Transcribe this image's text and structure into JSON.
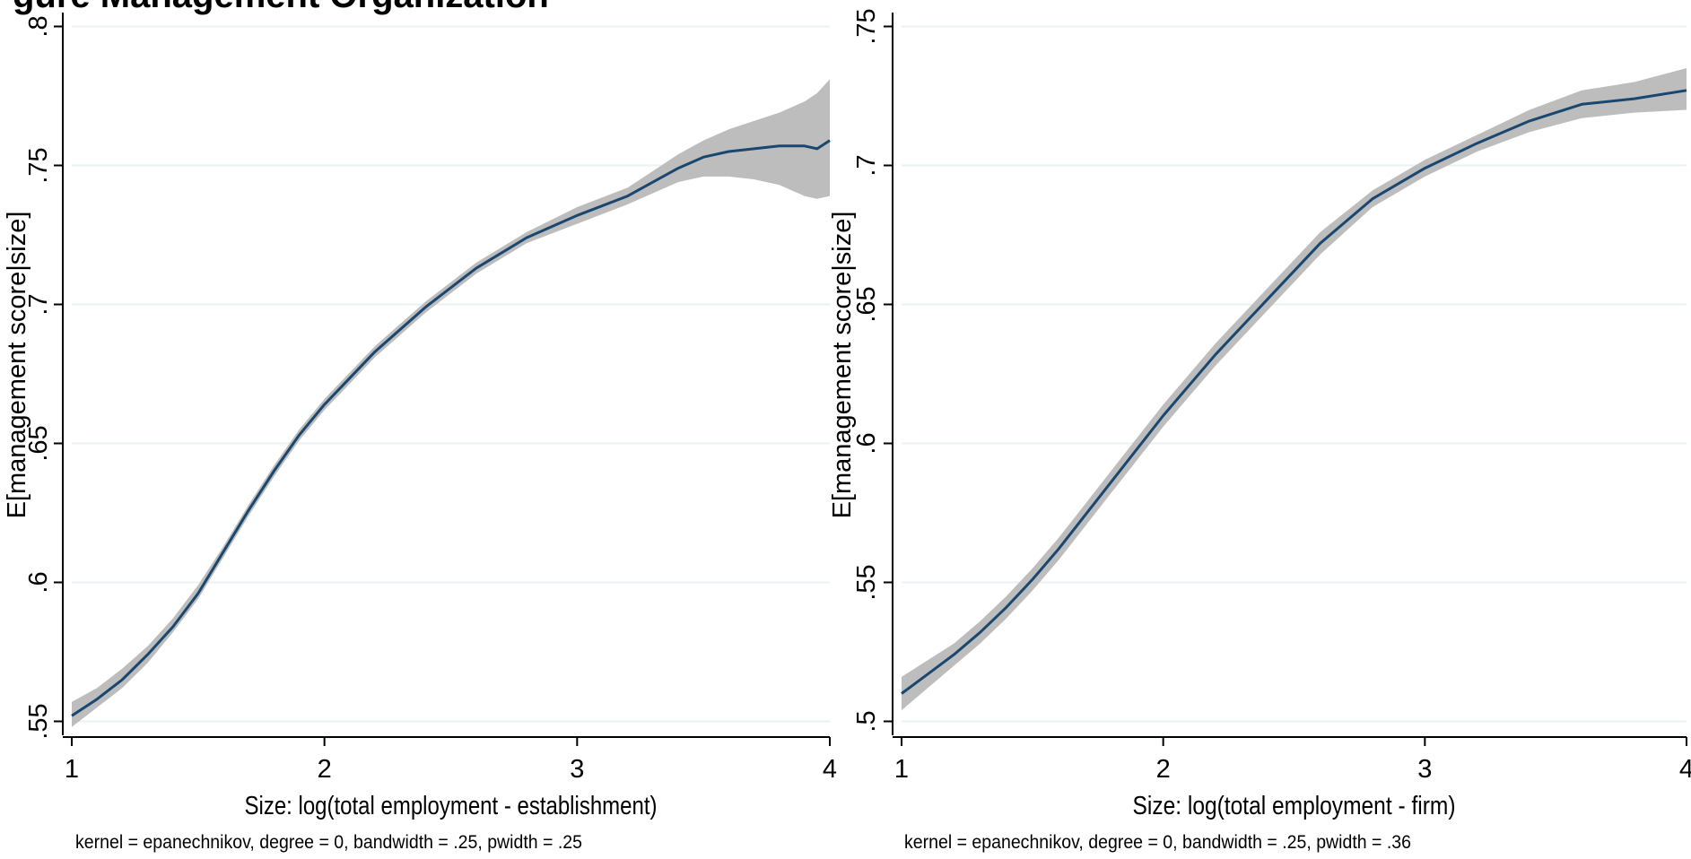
{
  "figure_title_visible": "gure Management Organization",
  "colors": {
    "line": "#1a476f",
    "band": "#bdbdbd",
    "grid": "#eaf2f3",
    "axis": "#000000"
  },
  "chart_data": [
    {
      "type": "line",
      "title": "",
      "xlabel": "Size: log(total employment - establishment)",
      "ylabel": "E[management score|size]",
      "note": "kernel = epanechnikov, degree = 0, bandwidth = .25, pwidth = .25",
      "xlim": [
        1,
        4
      ],
      "ylim": [
        0.545,
        0.805
      ],
      "x_ticks": [
        1,
        2,
        3,
        4
      ],
      "x_tick_labels": [
        "1",
        "2",
        "3",
        "4"
      ],
      "y_ticks": [
        0.55,
        0.6,
        0.65,
        0.7,
        0.75,
        0.8
      ],
      "y_tick_labels": [
        ".55",
        ".6",
        ".65",
        ".7",
        ".75",
        ".8"
      ],
      "grid": true,
      "series": [
        {
          "x": [
            1.0,
            1.1,
            1.2,
            1.3,
            1.4,
            1.5,
            1.6,
            1.7,
            1.8,
            1.9,
            2.0,
            2.2,
            2.4,
            2.6,
            2.8,
            3.0,
            3.2,
            3.3,
            3.4,
            3.5,
            3.6,
            3.7,
            3.8,
            3.9,
            3.95,
            4.0
          ],
          "y": [
            0.552,
            0.558,
            0.565,
            0.574,
            0.584,
            0.596,
            0.611,
            0.626,
            0.64,
            0.653,
            0.664,
            0.683,
            0.699,
            0.713,
            0.724,
            0.732,
            0.739,
            0.744,
            0.749,
            0.753,
            0.755,
            0.756,
            0.757,
            0.757,
            0.756,
            0.759
          ],
          "lower": [
            0.548,
            0.555,
            0.562,
            0.571,
            0.582,
            0.594,
            0.609,
            0.624,
            0.638,
            0.651,
            0.662,
            0.681,
            0.697,
            0.711,
            0.722,
            0.729,
            0.736,
            0.74,
            0.744,
            0.746,
            0.746,
            0.745,
            0.743,
            0.739,
            0.738,
            0.739
          ],
          "upper": [
            0.557,
            0.562,
            0.569,
            0.577,
            0.587,
            0.599,
            0.613,
            0.628,
            0.642,
            0.655,
            0.666,
            0.685,
            0.701,
            0.715,
            0.726,
            0.735,
            0.742,
            0.748,
            0.754,
            0.759,
            0.763,
            0.766,
            0.769,
            0.773,
            0.776,
            0.781
          ]
        }
      ]
    },
    {
      "type": "line",
      "title": "",
      "xlabel": "Size: log(total employment - firm)",
      "ylabel": "E[management score|size]",
      "note": "kernel = epanechnikov, degree = 0, bandwidth = .25, pwidth = .36",
      "xlim": [
        1,
        4
      ],
      "ylim": [
        0.495,
        0.755
      ],
      "x_ticks": [
        1,
        2,
        3,
        4
      ],
      "x_tick_labels": [
        "1",
        "2",
        "3",
        "4"
      ],
      "y_ticks": [
        0.5,
        0.55,
        0.6,
        0.65,
        0.7,
        0.75
      ],
      "y_tick_labels": [
        ".5",
        ".55",
        ".6",
        ".65",
        ".7",
        ".75"
      ],
      "grid": true,
      "series": [
        {
          "x": [
            1.0,
            1.1,
            1.2,
            1.3,
            1.4,
            1.5,
            1.6,
            1.7,
            1.8,
            1.9,
            2.0,
            2.2,
            2.4,
            2.6,
            2.8,
            3.0,
            3.2,
            3.4,
            3.6,
            3.8,
            4.0
          ],
          "y": [
            0.51,
            0.517,
            0.524,
            0.532,
            0.541,
            0.551,
            0.562,
            0.574,
            0.586,
            0.598,
            0.61,
            0.632,
            0.652,
            0.672,
            0.688,
            0.699,
            0.708,
            0.716,
            0.722,
            0.724,
            0.727
          ],
          "lower": [
            0.504,
            0.512,
            0.52,
            0.528,
            0.537,
            0.547,
            0.558,
            0.57,
            0.582,
            0.594,
            0.606,
            0.628,
            0.648,
            0.668,
            0.685,
            0.696,
            0.705,
            0.712,
            0.717,
            0.719,
            0.72
          ],
          "upper": [
            0.516,
            0.522,
            0.528,
            0.536,
            0.545,
            0.555,
            0.566,
            0.578,
            0.59,
            0.602,
            0.614,
            0.636,
            0.656,
            0.676,
            0.691,
            0.702,
            0.711,
            0.72,
            0.727,
            0.73,
            0.735
          ]
        }
      ]
    }
  ]
}
